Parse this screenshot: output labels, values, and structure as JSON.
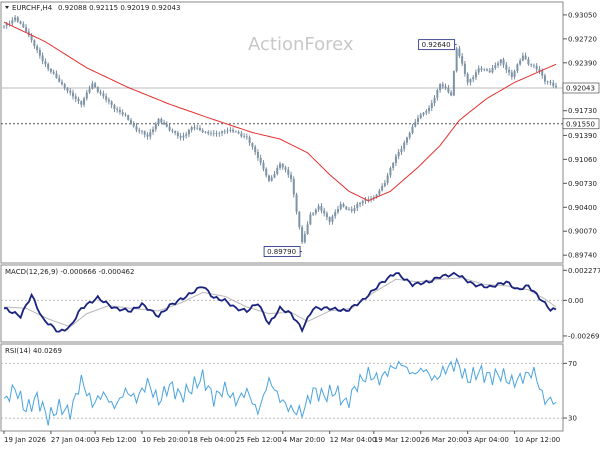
{
  "chart_data": [
    {
      "type": "candlestick",
      "symbol_label": "EURCHF,H4",
      "ohlc_label": "0.92088 0.92115 0.92019 0.92043",
      "watermark": "ActionForex",
      "ylim": [
        0.8966,
        0.932
      ],
      "y_ticks": [
        "0.93050",
        "0.92720",
        "0.92390",
        "0.92043",
        "0.91730",
        "0.91550",
        "0.91390",
        "0.91060",
        "0.90730",
        "0.90400",
        "0.90070",
        "0.89740"
      ],
      "y_tick_values": [
        0.9305,
        0.9272,
        0.9239,
        0.92043,
        0.9173,
        0.9155,
        0.9139,
        0.9106,
        0.9073,
        0.904,
        0.9007,
        0.8974
      ],
      "current_price": {
        "label": "0.92043",
        "value": 0.92043
      },
      "support_level": {
        "label": "0.91550",
        "value": 0.9155
      },
      "annotations": [
        {
          "label": "0.92640",
          "value": 0.9264,
          "bar": 164
        },
        {
          "label": "0.89790",
          "value": 0.8979,
          "bar": 108
        }
      ],
      "ma_series": {
        "points": [
          [
            0,
            0.9295
          ],
          [
            15,
            0.9268
          ],
          [
            30,
            0.9232
          ],
          [
            45,
            0.9205
          ],
          [
            60,
            0.9182
          ],
          [
            75,
            0.9162
          ],
          [
            90,
            0.9143
          ],
          [
            100,
            0.9134
          ],
          [
            110,
            0.9115
          ],
          [
            118,
            0.9085
          ],
          [
            125,
            0.9062
          ],
          [
            132,
            0.9049
          ],
          [
            140,
            0.9062
          ],
          [
            150,
            0.9095
          ],
          [
            158,
            0.9125
          ],
          [
            165,
            0.916
          ],
          [
            175,
            0.919
          ],
          [
            185,
            0.9212
          ],
          [
            200,
            0.9237
          ]
        ]
      },
      "close_series": {
        "points": [
          [
            0,
            0.929
          ],
          [
            4,
            0.93
          ],
          [
            8,
            0.9284
          ],
          [
            12,
            0.9255
          ],
          [
            16,
            0.9231
          ],
          [
            20,
            0.9214
          ],
          [
            24,
            0.9196
          ],
          [
            28,
            0.9183
          ],
          [
            32,
            0.921
          ],
          [
            36,
            0.9192
          ],
          [
            40,
            0.9177
          ],
          [
            44,
            0.9165
          ],
          [
            48,
            0.9147
          ],
          [
            52,
            0.9138
          ],
          [
            56,
            0.916
          ],
          [
            60,
            0.9148
          ],
          [
            64,
            0.9135
          ],
          [
            68,
            0.915
          ],
          [
            72,
            0.9145
          ],
          [
            76,
            0.914
          ],
          [
            80,
            0.9146
          ],
          [
            84,
            0.9144
          ],
          [
            88,
            0.9135
          ],
          [
            92,
            0.911
          ],
          [
            96,
            0.9075
          ],
          [
            100,
            0.91
          ],
          [
            104,
            0.908
          ],
          [
            108,
            0.899
          ],
          [
            111,
            0.903
          ],
          [
            114,
            0.904
          ],
          [
            118,
            0.9022
          ],
          [
            122,
            0.9043
          ],
          [
            126,
            0.9035
          ],
          [
            130,
            0.905
          ],
          [
            134,
            0.9052
          ],
          [
            138,
            0.9075
          ],
          [
            142,
            0.911
          ],
          [
            146,
            0.9135
          ],
          [
            150,
            0.9165
          ],
          [
            154,
            0.9175
          ],
          [
            158,
            0.921
          ],
          [
            162,
            0.9195
          ],
          [
            164,
            0.926
          ],
          [
            168,
            0.9212
          ],
          [
            172,
            0.923
          ],
          [
            176,
            0.9228
          ],
          [
            180,
            0.9242
          ],
          [
            184,
            0.922
          ],
          [
            188,
            0.925
          ],
          [
            190,
            0.9238
          ],
          [
            194,
            0.9228
          ],
          [
            196,
            0.9215
          ],
          [
            200,
            0.9205
          ]
        ]
      },
      "x_labels": [
        "19 Jan 2026",
        "27 Jan 04:00",
        "3 Feb 12:00",
        "10 Feb 20:00",
        "18 Feb 04:00",
        "25 Feb 12:00",
        "4 Mar 20:00",
        "12 Mar 04:00",
        "19 Mar 12:00",
        "26 Mar 20:00",
        "3 Apr 04:00",
        "10 Apr 12:00"
      ],
      "x_label_bars": [
        0,
        17,
        33,
        50,
        67,
        84,
        101,
        118,
        134,
        151,
        168,
        185
      ],
      "n_bars": 201
    },
    {
      "type": "line",
      "label": "MACD(12,26,9) -0.000666 -0.000462",
      "ylim": [
        -0.003,
        0.00245
      ],
      "y_ticks": [
        "0.002277",
        "0.00",
        "-0.002693"
      ],
      "y_tick_values": [
        0.002277,
        0.0,
        -0.002693
      ],
      "zero_line": 0.0,
      "series": [
        {
          "role": "macd",
          "points": [
            [
              0,
              -0.0006
            ],
            [
              6,
              -0.0012
            ],
            [
              10,
              0.0004
            ],
            [
              14,
              -0.0014
            ],
            [
              20,
              -0.0024
            ],
            [
              24,
              -0.002
            ],
            [
              28,
              -0.0006
            ],
            [
              34,
              0.0002
            ],
            [
              40,
              -0.0006
            ],
            [
              46,
              -0.0008
            ],
            [
              50,
              -0.0003
            ],
            [
              56,
              -0.0012
            ],
            [
              60,
              -0.0004
            ],
            [
              66,
              0.0003
            ],
            [
              72,
              0.0011
            ],
            [
              76,
              0.0002
            ],
            [
              80,
              0.0
            ],
            [
              84,
              -0.0006
            ],
            [
              88,
              -0.0008
            ],
            [
              92,
              -0.0002
            ],
            [
              96,
              -0.0018
            ],
            [
              100,
              -0.0006
            ],
            [
              104,
              -0.001
            ],
            [
              108,
              -0.0022
            ],
            [
              112,
              -0.0006
            ],
            [
              118,
              -0.0006
            ],
            [
              124,
              -0.0008
            ],
            [
              130,
              0.0
            ],
            [
              136,
              0.0012
            ],
            [
              142,
              0.0021
            ],
            [
              148,
              0.0012
            ],
            [
              154,
              0.0014
            ],
            [
              158,
              0.0018
            ],
            [
              164,
              0.002
            ],
            [
              170,
              0.0012
            ],
            [
              176,
              0.001
            ],
            [
              182,
              0.0014
            ],
            [
              186,
              0.0008
            ],
            [
              190,
              0.0011
            ],
            [
              194,
              0.0002
            ],
            [
              198,
              -0.0007
            ],
            [
              200,
              -0.0007
            ]
          ]
        },
        {
          "role": "signal",
          "points": [
            [
              0,
              -0.0005
            ],
            [
              8,
              -0.0006
            ],
            [
              16,
              -0.0014
            ],
            [
              24,
              -0.002
            ],
            [
              30,
              -0.001
            ],
            [
              38,
              -0.0004
            ],
            [
              46,
              -0.0006
            ],
            [
              56,
              -0.0008
            ],
            [
              64,
              -0.0002
            ],
            [
              72,
              0.0006
            ],
            [
              80,
              0.0003
            ],
            [
              88,
              -0.0005
            ],
            [
              96,
              -0.001
            ],
            [
              104,
              -0.0009
            ],
            [
              110,
              -0.0016
            ],
            [
              118,
              -0.0008
            ],
            [
              126,
              -0.0006
            ],
            [
              134,
              0.0006
            ],
            [
              142,
              0.0016
            ],
            [
              150,
              0.0014
            ],
            [
              158,
              0.0016
            ],
            [
              166,
              0.0017
            ],
            [
              174,
              0.0012
            ],
            [
              182,
              0.0011
            ],
            [
              190,
              0.0008
            ],
            [
              196,
              0.0001
            ],
            [
              200,
              -0.0005
            ]
          ]
        }
      ]
    },
    {
      "type": "line",
      "label": "RSI(14) 40.0269",
      "ylim": [
        22,
        82
      ],
      "y_ticks": [
        "70",
        "30"
      ],
      "y_tick_values": [
        70,
        30
      ],
      "series": [
        {
          "role": "rsi",
          "points": [
            [
              0,
              42
            ],
            [
              4,
              52
            ],
            [
              8,
              36
            ],
            [
              12,
              45
            ],
            [
              16,
              30
            ],
            [
              20,
              38
            ],
            [
              24,
              34
            ],
            [
              28,
              58
            ],
            [
              32,
              40
            ],
            [
              36,
              48
            ],
            [
              40,
              38
            ],
            [
              44,
              50
            ],
            [
              48,
              44
            ],
            [
              52,
              56
            ],
            [
              56,
              42
            ],
            [
              60,
              54
            ],
            [
              64,
              46
            ],
            [
              68,
              52
            ],
            [
              72,
              60
            ],
            [
              76,
              44
            ],
            [
              80,
              52
            ],
            [
              84,
              42
            ],
            [
              88,
              50
            ],
            [
              92,
              34
            ],
            [
              96,
              58
            ],
            [
              100,
              44
            ],
            [
              104,
              36
            ],
            [
              108,
              34
            ],
            [
              112,
              50
            ],
            [
              116,
              46
            ],
            [
              120,
              50
            ],
            [
              124,
              40
            ],
            [
              128,
              55
            ],
            [
              132,
              62
            ],
            [
              136,
              58
            ],
            [
              140,
              66
            ],
            [
              144,
              70
            ],
            [
              148,
              62
            ],
            [
              152,
              66
            ],
            [
              156,
              58
            ],
            [
              160,
              66
            ],
            [
              164,
              70
            ],
            [
              168,
              58
            ],
            [
              172,
              64
            ],
            [
              176,
              60
            ],
            [
              180,
              62
            ],
            [
              184,
              56
            ],
            [
              188,
              60
            ],
            [
              192,
              64
            ],
            [
              196,
              42
            ],
            [
              198,
              44
            ],
            [
              200,
              40
            ]
          ]
        }
      ]
    }
  ]
}
